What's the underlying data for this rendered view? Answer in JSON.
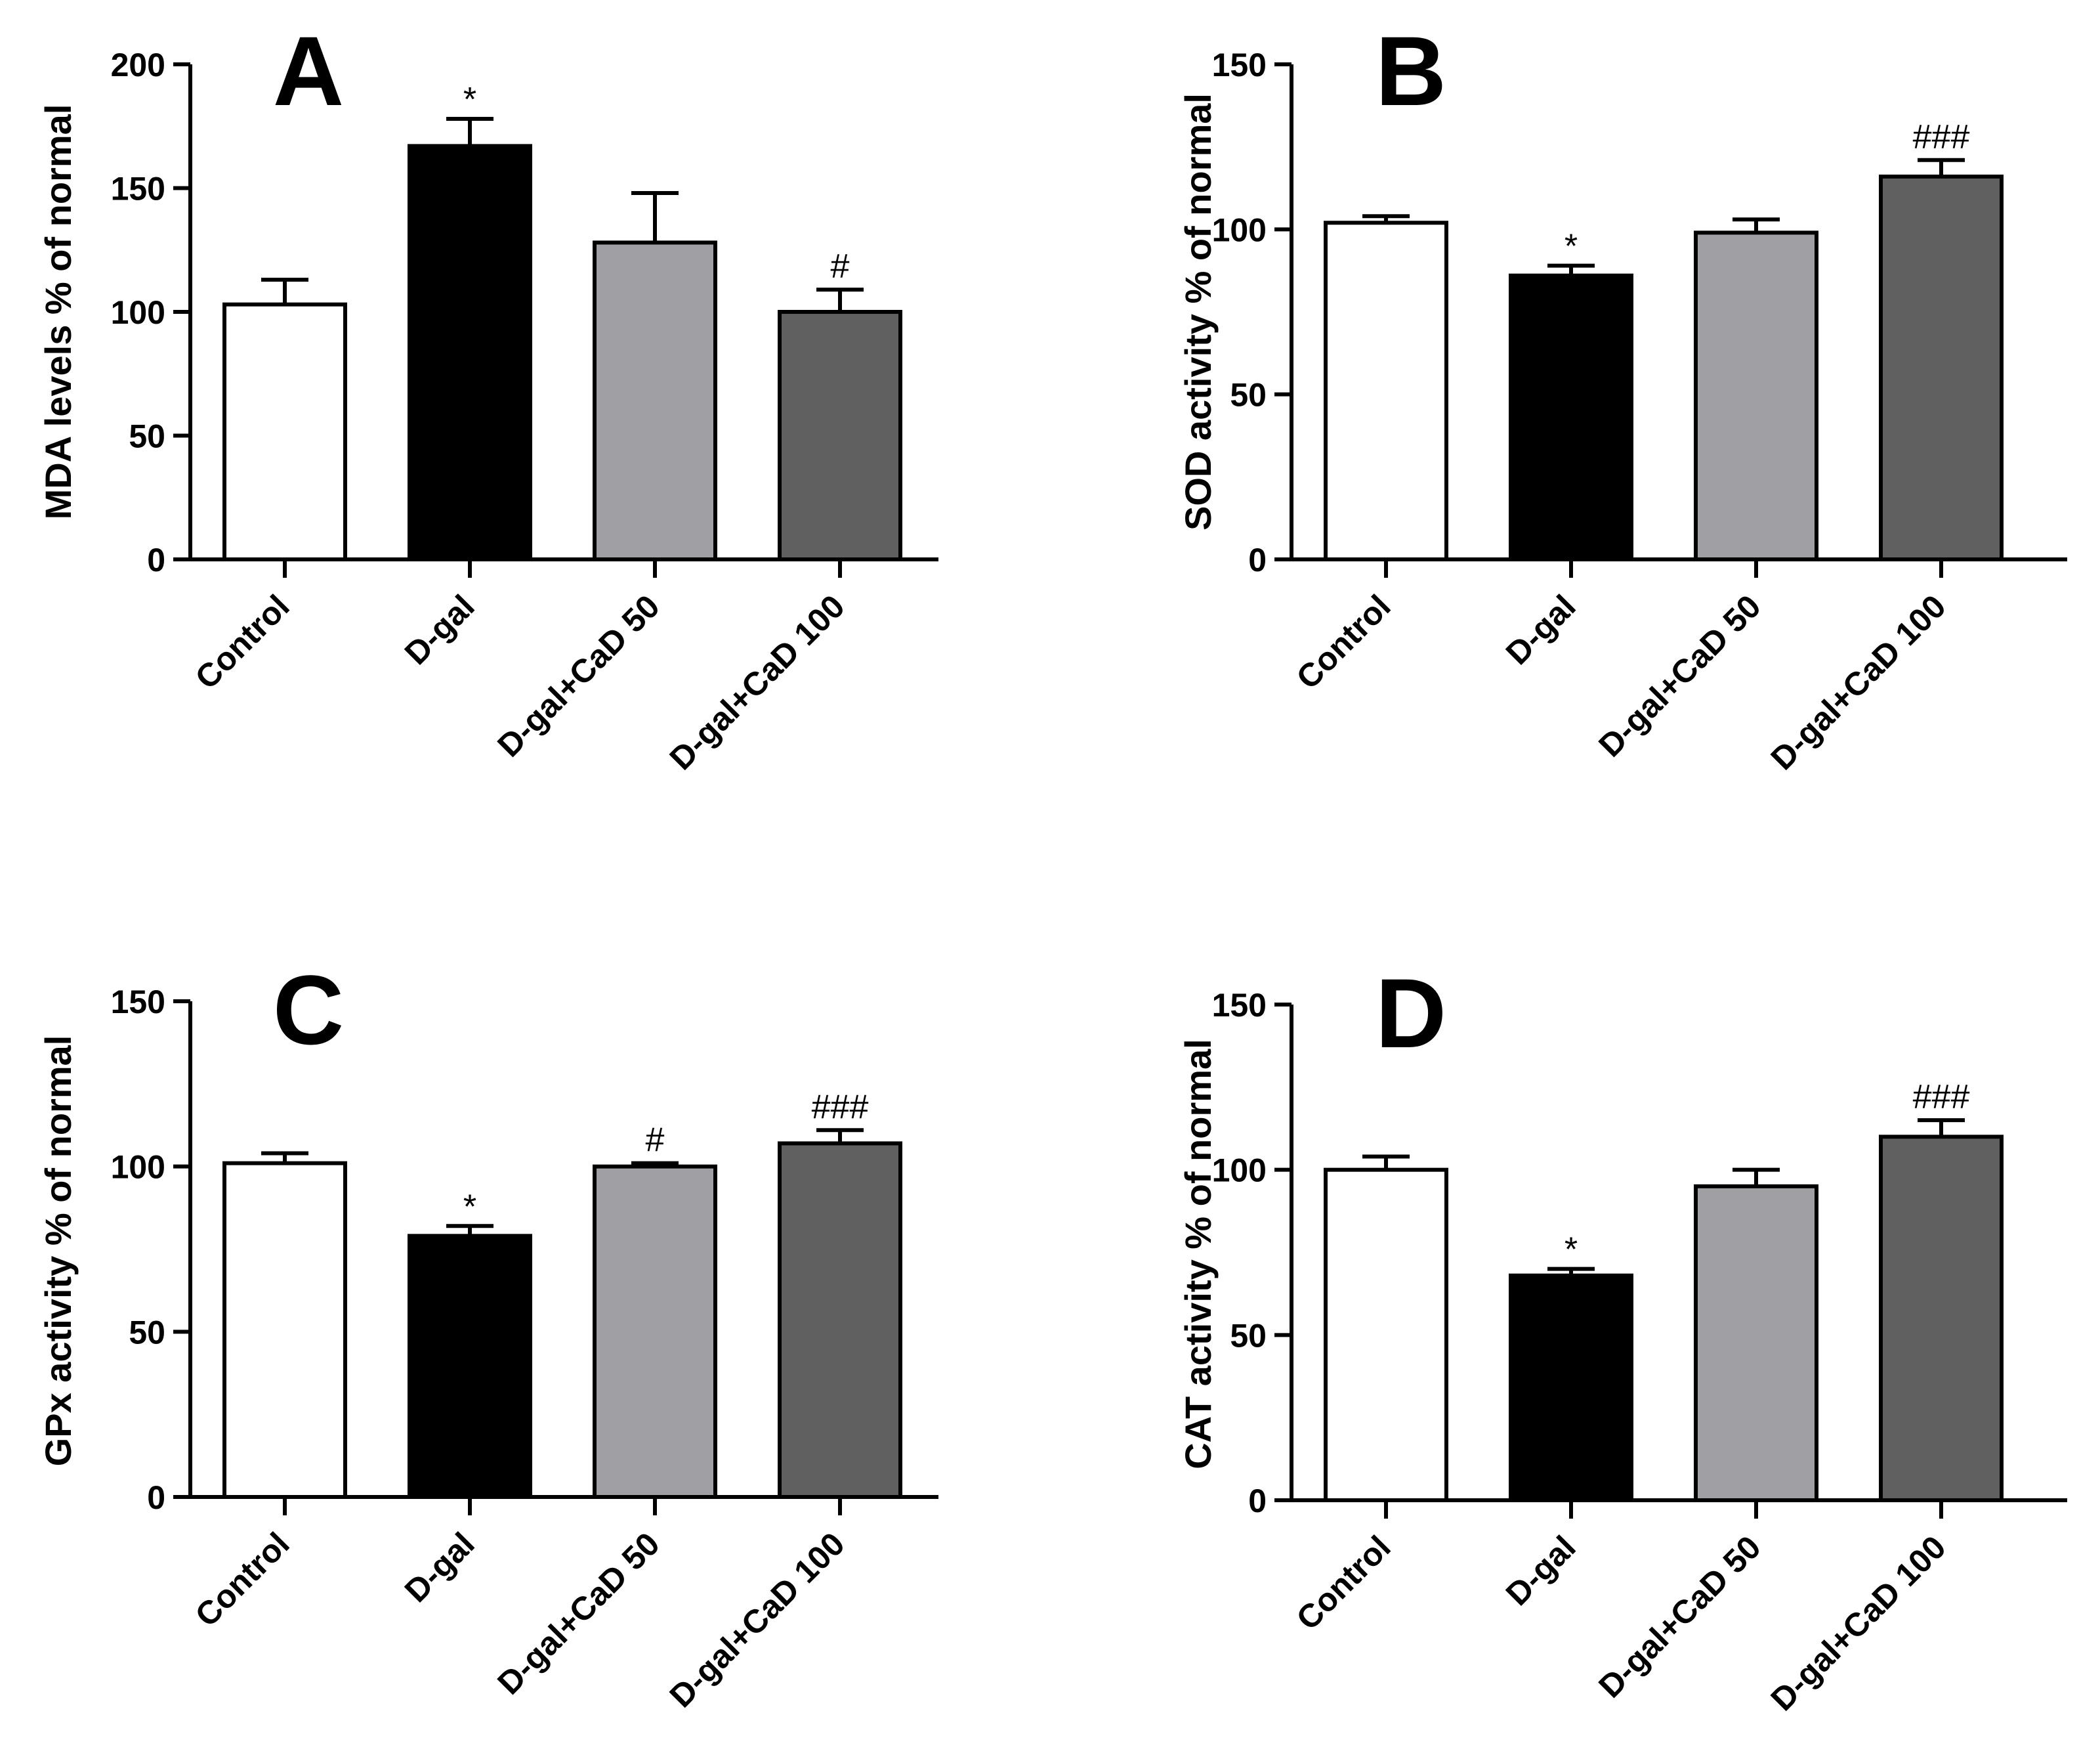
{
  "chart_data": [
    {
      "type": "bar",
      "panel": "A",
      "ylabel": "MDA levels % of normal",
      "ylim": [
        0,
        200
      ],
      "yticks": [
        0,
        50,
        100,
        150,
        200
      ],
      "categories": [
        "Control",
        "D-gal",
        "D-gal+CaD 50",
        "D-gal+CaD 100"
      ],
      "values": [
        103,
        167,
        128,
        100
      ],
      "errors": [
        10,
        11,
        20,
        9
      ],
      "annotations": [
        "",
        "*",
        "",
        "#"
      ],
      "bar_colors": [
        "#ffffff",
        "#000000",
        "#a0a0a4",
        "#606060"
      ]
    },
    {
      "type": "bar",
      "panel": "B",
      "ylabel": "SOD activity % of normal",
      "ylim": [
        0,
        150
      ],
      "yticks": [
        0,
        50,
        100,
        150
      ],
      "categories": [
        "Control",
        "D-gal",
        "D-gal+CaD 50",
        "D-gal+CaD 100"
      ],
      "values": [
        102,
        86,
        99,
        116
      ],
      "errors": [
        2,
        3,
        4,
        5
      ],
      "annotations": [
        "",
        "*",
        "",
        "###"
      ],
      "bar_colors": [
        "#ffffff",
        "#000000",
        "#a0a0a4",
        "#606060"
      ]
    },
    {
      "type": "bar",
      "panel": "C",
      "ylabel": "GPx activity % of normal",
      "ylim": [
        0,
        150
      ],
      "yticks": [
        0,
        50,
        100,
        150
      ],
      "categories": [
        "Control",
        "D-gal",
        "D-gal+CaD 50",
        "D-gal+CaD 100"
      ],
      "values": [
        101,
        79,
        100,
        107
      ],
      "errors": [
        3,
        3,
        1,
        4
      ],
      "annotations": [
        "",
        "*",
        "#",
        "###"
      ],
      "bar_colors": [
        "#ffffff",
        "#000000",
        "#a0a0a4",
        "#606060"
      ]
    },
    {
      "type": "bar",
      "panel": "D",
      "ylabel": "CAT activity % of normal",
      "ylim": [
        0,
        150
      ],
      "yticks": [
        0,
        50,
        100,
        150
      ],
      "categories": [
        "Control",
        "D-gal",
        "D-gal+CaD 50",
        "D-gal+CaD 100"
      ],
      "values": [
        100,
        68,
        95,
        110
      ],
      "errors": [
        4,
        2,
        5,
        5
      ],
      "annotations": [
        "",
        "*",
        "",
        "###"
      ],
      "bar_colors": [
        "#ffffff",
        "#000000",
        "#a0a0a4",
        "#606060"
      ]
    }
  ]
}
